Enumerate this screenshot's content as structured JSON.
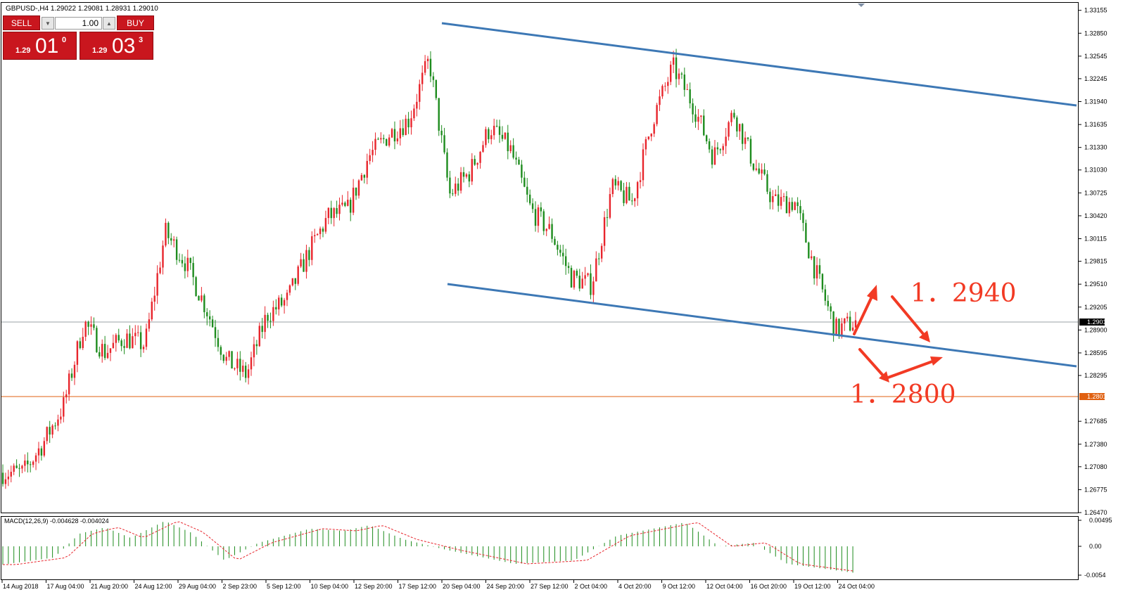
{
  "header": {
    "symbol_title": "GBPUSD-,H4  1.29022 1.29081 1.28931 1.29010"
  },
  "trade_panel": {
    "sell_label": "SELL",
    "buy_label": "BUY",
    "lot": "1.00",
    "bid_small": "1.29",
    "bid_big": "01",
    "bid_sup": "0",
    "ask_small": "1.29",
    "ask_big": "03",
    "ask_sup": "3"
  },
  "price_axis": {
    "ticks": [
      "1.33155",
      "1.32850",
      "1.32545",
      "1.32245",
      "1.31940",
      "1.31635",
      "1.31330",
      "1.31030",
      "1.30725",
      "1.30420",
      "1.30115",
      "1.29815",
      "1.29510",
      "1.29205",
      "1.28900",
      "1.28595",
      "1.28295",
      "1.27685",
      "1.27380",
      "1.27080",
      "1.26775",
      "1.26470"
    ],
    "current_price_label": "1.29010",
    "level_label": "1.28013"
  },
  "time_axis": {
    "labels": [
      "14 Aug 2018",
      "17 Aug 04:00",
      "21 Aug 20:00",
      "24 Aug 12:00",
      "29 Aug 04:00",
      "2 Sep 23:00",
      "5 Sep 12:00",
      "10 Sep 04:00",
      "12 Sep 20:00",
      "17 Sep 12:00",
      "20 Sep 04:00",
      "24 Sep 20:00",
      "27 Sep 12:00",
      "2 Oct 04:00",
      "4 Oct 20:00",
      "9 Oct 12:00",
      "12 Oct 04:00",
      "16 Oct 20:00",
      "19 Oct 12:00",
      "24 Oct 04:00"
    ]
  },
  "macd": {
    "title": "MACD(12,26,9) -0.004628 -0.004024",
    "ticks": [
      "0.00495",
      "0.00",
      "-0.0054"
    ]
  },
  "annotations": {
    "upper_target": "1．2940",
    "lower_target": "1．2800"
  },
  "colors": {
    "bull": "#e8252c",
    "bear": "#1e8c1e",
    "channel": "#3d78b5",
    "level": "#e06010",
    "annotation": "#f23a24"
  },
  "chart_data": {
    "type": "candlestick",
    "symbol": "GBPUSD",
    "timeframe": "H4",
    "last_ohlc": {
      "open": 1.29022,
      "high": 1.29081,
      "low": 1.28931,
      "close": 1.2901
    },
    "ylim": [
      1.2647,
      1.3318
    ],
    "price_path": [
      [
        "14 Aug 2018",
        1.27
      ],
      [
        "16 Aug",
        1.27
      ],
      [
        "17 Aug 04:00",
        1.274
      ],
      [
        "19 Aug",
        1.279
      ],
      [
        "21 Aug 20:00",
        1.29
      ],
      [
        "23 Aug",
        1.286
      ],
      [
        "24 Aug 12:00",
        1.288
      ],
      [
        "27 Aug",
        1.287
      ],
      [
        "28 Aug",
        1.302
      ],
      [
        "29 Aug 04:00",
        1.298
      ],
      [
        "31 Aug",
        1.292
      ],
      [
        "2 Sep 23:00",
        1.285
      ],
      [
        "4 Sep",
        1.283
      ],
      [
        "5 Sep 12:00",
        1.291
      ],
      [
        "7 Sep",
        1.293
      ],
      [
        "10 Sep 04:00",
        1.299
      ],
      [
        "11 Sep",
        1.304
      ],
      [
        "12 Sep 20:00",
        1.305
      ],
      [
        "14 Sep",
        1.312
      ],
      [
        "17 Sep 12:00",
        1.315
      ],
      [
        "19 Sep",
        1.317
      ],
      [
        "20 Sep 04:00",
        1.325
      ],
      [
        "21 Sep",
        1.307
      ],
      [
        "22 Sep",
        1.31
      ],
      [
        "24 Sep 20:00",
        1.316
      ],
      [
        "26 Sep",
        1.313
      ],
      [
        "27 Sep 12:00",
        1.305
      ],
      [
        "29 Sep",
        1.302
      ],
      [
        "2 Oct 04:00",
        1.296
      ],
      [
        "3 Oct",
        1.295
      ],
      [
        "4 Oct 20:00",
        1.308
      ],
      [
        "6 Oct",
        1.306
      ],
      [
        "8 Oct",
        1.317
      ],
      [
        "9 Oct 12:00",
        1.324
      ],
      [
        "11 Oct",
        1.319
      ],
      [
        "12 Oct 04:00",
        1.312
      ],
      [
        "15 Oct",
        1.318
      ],
      [
        "16 Oct 20:00",
        1.311
      ],
      [
        "18 Oct",
        1.306
      ],
      [
        "19 Oct 12:00",
        1.306
      ],
      [
        "22 Oct",
        1.297
      ],
      [
        "24 Oct 04:00",
        1.289
      ],
      [
        "24 Oct",
        1.2901
      ]
    ],
    "channel_upper": [
      [
        "20 Sep 04:00",
        1.329
      ],
      [
        "end",
        1.319
      ]
    ],
    "channel_lower": [
      [
        "20 Sep 04:00",
        1.295
      ],
      [
        "end",
        1.2845
      ]
    ],
    "horizontal_levels": [
      1.2901,
      1.28013
    ],
    "macd": {
      "params": "12,26,9",
      "main": -0.004628,
      "signal": -0.004024,
      "ylim": [
        -0.0054,
        0.00495
      ]
    }
  }
}
